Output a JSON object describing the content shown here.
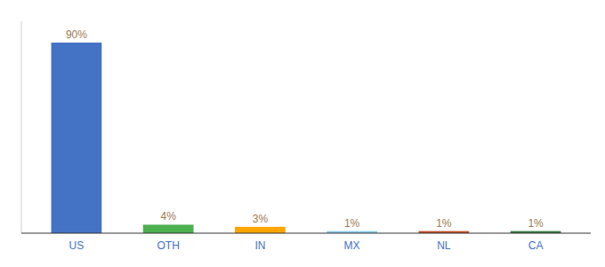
{
  "chart_data": {
    "type": "bar",
    "categories": [
      "US",
      "OTH",
      "IN",
      "MX",
      "NL",
      "CA"
    ],
    "values": [
      90,
      4,
      3,
      1,
      1,
      1
    ],
    "value_labels": [
      "90%",
      "4%",
      "3%",
      "1%",
      "1%",
      "1%"
    ],
    "data_labels": true,
    "colors": [
      "#4472C4",
      "#4CAF50",
      "#FFA500",
      "#87CEEB",
      "#C0522A",
      "#3A7D44"
    ],
    "ylim": [
      0,
      100
    ],
    "grid": false,
    "tick_labels": "x"
  }
}
